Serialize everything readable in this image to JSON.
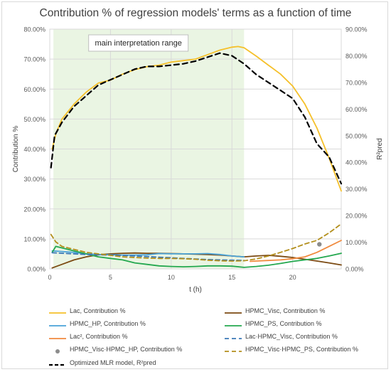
{
  "chart_data": {
    "type": "line",
    "title": "Contribution % of regression models' terms as a function of time",
    "xlabel": "t (h)",
    "ylabel": "Contribution %",
    "y2label": "R²pred",
    "xlim": [
      0,
      24
    ],
    "x_ticks": [
      "0",
      "5",
      "10",
      "15",
      "20"
    ],
    "ylim": [
      0,
      80
    ],
    "y_ticks": [
      "0.00%",
      "10.00%",
      "20.00%",
      "30.00%",
      "40.00%",
      "50.00%",
      "60.00%",
      "70.00%",
      "80.00%"
    ],
    "y2lim": [
      0,
      90
    ],
    "y2_ticks": [
      "0.00%",
      "10.00%",
      "20.00%",
      "30.00%",
      "40.00%",
      "50.00%",
      "60.00%",
      "70.00%",
      "80.00%",
      "90.00%"
    ],
    "shaded_range": [
      0.3,
      16
    ],
    "annotation": "main interpretation range",
    "grid": true,
    "legend_position": "bottom",
    "series": [
      {
        "name": "Lac, Contribution %",
        "color": "#f5c02a",
        "style": "solid",
        "axis": "left",
        "points": [
          [
            0.2,
            40
          ],
          [
            0.5,
            45
          ],
          [
            1,
            50
          ],
          [
            2,
            55
          ],
          [
            3,
            59
          ],
          [
            4,
            62
          ],
          [
            5,
            63
          ],
          [
            6,
            65
          ],
          [
            7,
            66.5
          ],
          [
            8,
            67.5
          ],
          [
            9,
            68
          ],
          [
            10,
            69
          ],
          [
            11,
            69.5
          ],
          [
            12,
            70
          ],
          [
            13,
            71.5
          ],
          [
            14,
            73
          ],
          [
            15,
            74
          ],
          [
            15.5,
            74.2
          ],
          [
            16,
            73.8
          ],
          [
            17,
            71
          ],
          [
            18,
            68
          ],
          [
            19,
            65
          ],
          [
            20,
            61
          ],
          [
            21,
            55
          ],
          [
            22,
            47
          ],
          [
            23,
            37
          ],
          [
            24,
            26
          ]
        ]
      },
      {
        "name": "HPMC_Visc, Contribution %",
        "color": "#7b4a12",
        "style": "solid",
        "axis": "left",
        "points": [
          [
            0.2,
            0.3
          ],
          [
            1,
            1.5
          ],
          [
            2,
            3
          ],
          [
            3,
            4
          ],
          [
            4,
            4.7
          ],
          [
            5,
            5
          ],
          [
            6,
            5.2
          ],
          [
            7,
            5.3
          ],
          [
            8,
            5.2
          ],
          [
            9,
            5.2
          ],
          [
            10,
            5.1
          ],
          [
            11,
            5
          ],
          [
            12,
            4.9
          ],
          [
            13,
            4.8
          ],
          [
            14,
            4.6
          ],
          [
            15,
            4.3
          ],
          [
            16,
            4
          ],
          [
            17,
            4.3
          ],
          [
            18,
            4.5
          ],
          [
            19,
            4.2
          ],
          [
            20,
            3.8
          ],
          [
            21,
            3.2
          ],
          [
            22,
            2.6
          ],
          [
            23,
            2
          ],
          [
            24,
            1.3
          ]
        ]
      },
      {
        "name": "HPMC_HP, Contribution %",
        "color": "#4aa3d8",
        "style": "solid",
        "axis": "left",
        "points": [
          [
            0.2,
            6
          ],
          [
            1,
            5.8
          ],
          [
            2,
            5.5
          ],
          [
            3,
            5
          ],
          [
            4,
            4.8
          ],
          [
            5,
            4.7
          ],
          [
            6,
            4.6
          ],
          [
            7,
            4.6
          ],
          [
            8,
            4.7
          ],
          [
            9,
            5.1
          ],
          [
            10,
            5
          ],
          [
            11,
            5
          ],
          [
            12,
            5
          ],
          [
            13,
            5.1
          ],
          [
            14,
            4.8
          ],
          [
            15,
            4.3
          ],
          [
            16,
            4
          ]
        ]
      },
      {
        "name": "HPMC_PS, Contribution %",
        "color": "#24a84f",
        "style": "solid",
        "axis": "left",
        "points": [
          [
            0.2,
            5.5
          ],
          [
            0.5,
            7.5
          ],
          [
            1,
            7
          ],
          [
            2,
            6
          ],
          [
            3,
            5
          ],
          [
            4,
            4
          ],
          [
            5,
            3.5
          ],
          [
            6,
            3
          ],
          [
            7,
            2
          ],
          [
            8,
            1.5
          ],
          [
            9,
            1
          ],
          [
            10,
            0.8
          ],
          [
            11,
            0.7
          ],
          [
            12,
            0.8
          ],
          [
            13,
            1
          ],
          [
            14,
            1
          ],
          [
            15,
            0.9
          ],
          [
            16,
            0.5
          ],
          [
            17,
            0.8
          ],
          [
            18,
            1.2
          ],
          [
            19,
            1.8
          ],
          [
            20,
            2.5
          ],
          [
            21,
            3
          ],
          [
            22,
            3.5
          ],
          [
            23,
            4.3
          ],
          [
            24,
            5.2
          ]
        ]
      },
      {
        "name": "Lac², Contribution %",
        "color": "#f08a3e",
        "style": "solid",
        "axis": "left",
        "points": [
          [
            16.5,
            2.5
          ],
          [
            17,
            2.6
          ],
          [
            18,
            2.8
          ],
          [
            19,
            3
          ],
          [
            20,
            3.4
          ],
          [
            21,
            4
          ],
          [
            22,
            5.5
          ],
          [
            23,
            7.5
          ],
          [
            24,
            9.5
          ]
        ]
      },
      {
        "name": "Lac·HPMC_Visc, Contribution %",
        "color": "#3a78b6",
        "style": "dash",
        "axis": "left",
        "points": [
          [
            0.2,
            5.4
          ],
          [
            1,
            5.2
          ],
          [
            2,
            5
          ],
          [
            3,
            4.8
          ],
          [
            4,
            4.7
          ],
          [
            5,
            4.6
          ],
          [
            6,
            4.5
          ],
          [
            7,
            4.3
          ],
          [
            8,
            4.1
          ],
          [
            9,
            3.9
          ],
          [
            10,
            3.7
          ],
          [
            11,
            3.5
          ],
          [
            12,
            3.3
          ],
          [
            13,
            3.1
          ],
          [
            14,
            3
          ],
          [
            15,
            2.9
          ],
          [
            16,
            2.8
          ]
        ]
      },
      {
        "name": "HPMC_Visc·HPMC_HP, Contribution %",
        "color": "#8c8c8c",
        "style": "marker",
        "axis": "left",
        "points": [
          [
            22.2,
            8.2
          ]
        ]
      },
      {
        "name": "HPMC_Visc·HPMC_PS, Contribution %",
        "color": "#b38f1c",
        "style": "dash",
        "axis": "left",
        "points": [
          [
            0.1,
            11.5
          ],
          [
            0.5,
            9
          ],
          [
            1,
            7.5
          ],
          [
            2,
            6.5
          ],
          [
            3,
            5.5
          ],
          [
            4,
            5
          ],
          [
            5,
            4.5
          ],
          [
            6,
            4
          ],
          [
            7,
            3.8
          ],
          [
            8,
            3.6
          ],
          [
            9,
            3.5
          ],
          [
            10,
            3.5
          ],
          [
            11,
            3.4
          ],
          [
            12,
            3.2
          ],
          [
            13,
            2.9
          ],
          [
            14,
            2.7
          ],
          [
            15,
            2.6
          ],
          [
            16,
            2.7
          ],
          [
            17,
            3.3
          ],
          [
            18,
            4.3
          ],
          [
            19,
            5.5
          ],
          [
            20,
            6.8
          ],
          [
            21,
            8.3
          ],
          [
            22,
            9.5
          ],
          [
            23,
            12
          ],
          [
            24,
            15
          ]
        ]
      },
      {
        "name": "Optimized MLR model, R²pred",
        "color": "#000000",
        "style": "bigdash",
        "axis": "right",
        "points": [
          [
            0.1,
            38
          ],
          [
            0.4,
            50
          ],
          [
            1,
            55
          ],
          [
            2,
            61
          ],
          [
            3,
            65
          ],
          [
            4,
            69
          ],
          [
            5,
            71
          ],
          [
            6,
            73
          ],
          [
            7,
            75
          ],
          [
            8,
            76
          ],
          [
            9,
            76
          ],
          [
            10,
            76.5
          ],
          [
            11,
            77
          ],
          [
            12,
            78
          ],
          [
            13,
            79.5
          ],
          [
            14,
            81
          ],
          [
            15,
            80
          ],
          [
            16,
            77
          ],
          [
            17,
            73
          ],
          [
            18,
            70
          ],
          [
            19,
            67
          ],
          [
            20,
            64
          ],
          [
            21,
            57
          ],
          [
            22,
            47
          ],
          [
            23,
            42
          ],
          [
            24,
            32
          ]
        ]
      }
    ]
  }
}
